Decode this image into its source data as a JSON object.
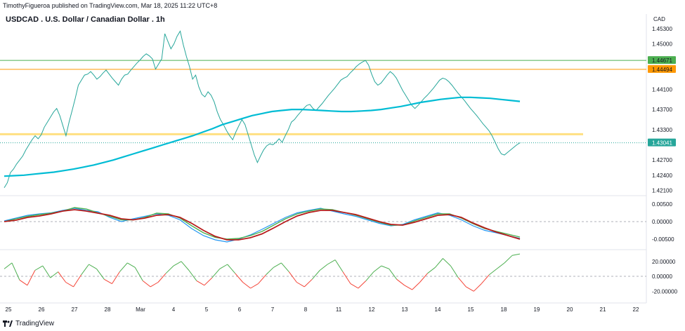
{
  "header": {
    "attribution": "TimothyFigueroa published on TradingView.com, Mar 18, 2025 11:22 UTC+8",
    "brand": "TradingView"
  },
  "chart_data": {
    "type": "line",
    "title": "USDCAD . U.S. Dollar / Canadian Dollar . 1h",
    "currency": "CAD",
    "x_labels": [
      "25",
      "26",
      "27",
      "28",
      "Mar",
      "4",
      "5",
      "6",
      "7",
      "8",
      "11",
      "12",
      "13",
      "14",
      "15",
      "18",
      "19",
      "20",
      "21",
      "22"
    ],
    "price_panel": {
      "y_ticks": [
        "1.45300",
        "1.45000",
        "1.44100",
        "1.43700",
        "1.43300",
        "1.42700",
        "1.42400",
        "1.42100"
      ],
      "ylim": [
        1.4205,
        1.4545
      ],
      "series": [
        {
          "name": "price",
          "color": "#26a69a",
          "values": [
            1.4215,
            1.4225,
            1.4245,
            1.4252,
            1.4262,
            1.427,
            1.4278,
            1.429,
            1.43,
            1.431,
            1.4318,
            1.4312,
            1.432,
            1.4335,
            1.4345,
            1.4355,
            1.4365,
            1.4372,
            1.4358,
            1.4338,
            1.4318,
            1.4345,
            1.4368,
            1.4392,
            1.4418,
            1.4428,
            1.4438,
            1.444,
            1.4445,
            1.4438,
            1.443,
            1.4435,
            1.4442,
            1.4448,
            1.444,
            1.4432,
            1.4425,
            1.4418,
            1.443,
            1.4438,
            1.444,
            1.4448,
            1.4455,
            1.4462,
            1.4468,
            1.4475,
            1.448,
            1.4476,
            1.447,
            1.445,
            1.446,
            1.447,
            1.452,
            1.4505,
            1.449,
            1.45,
            1.4515,
            1.4525,
            1.4498,
            1.4475,
            1.4455,
            1.443,
            1.4438,
            1.4415,
            1.44,
            1.4395,
            1.4405,
            1.4398,
            1.4385,
            1.4365,
            1.435,
            1.434,
            1.4328,
            1.4318,
            1.431,
            1.4325,
            1.4338,
            1.435,
            1.434,
            1.432,
            1.43,
            1.428,
            1.4265,
            1.4278,
            1.429,
            1.4298,
            1.4302,
            1.43,
            1.4305,
            1.4312,
            1.4305,
            1.4318,
            1.433,
            1.4345,
            1.435,
            1.4358,
            1.4365,
            1.4372,
            1.4378,
            1.438,
            1.4372,
            1.4368,
            1.4375,
            1.4382,
            1.439,
            1.4398,
            1.4405,
            1.4412,
            1.442,
            1.4428,
            1.4432,
            1.4435,
            1.4442,
            1.4448,
            1.4455,
            1.446,
            1.4464,
            1.4467,
            1.4458,
            1.444,
            1.4425,
            1.4418,
            1.4422,
            1.443,
            1.4438,
            1.4445,
            1.444,
            1.4432,
            1.442,
            1.4408,
            1.4398,
            1.4388,
            1.4378,
            1.4372,
            1.4378,
            1.4385,
            1.4392,
            1.4398,
            1.4405,
            1.4412,
            1.442,
            1.4428,
            1.4432,
            1.443,
            1.4425,
            1.4418,
            1.441,
            1.4402,
            1.4395,
            1.4388,
            1.438,
            1.4372,
            1.4365,
            1.4358,
            1.435,
            1.4342,
            1.4335,
            1.4328,
            1.4318,
            1.4305,
            1.4292,
            1.4282,
            1.428,
            1.4285,
            1.429,
            1.4295,
            1.43,
            1.4304
          ]
        },
        {
          "name": "moving-average",
          "color": "#00bcd4",
          "values": [
            1.4238,
            1.4239,
            1.424,
            1.4242,
            1.4244,
            1.4246,
            1.4249,
            1.4252,
            1.4256,
            1.426,
            1.4265,
            1.427,
            1.4276,
            1.4282,
            1.4288,
            1.4294,
            1.43,
            1.4306,
            1.4312,
            1.4318,
            1.4325,
            1.4332,
            1.434,
            1.4346,
            1.4352,
            1.4358,
            1.4362,
            1.4366,
            1.4368,
            1.437,
            1.437,
            1.4369,
            1.4368,
            1.4367,
            1.4366,
            1.4366,
            1.4367,
            1.4368,
            1.437,
            1.4373,
            1.4376,
            1.438,
            1.4384,
            1.4387,
            1.439,
            1.4392,
            1.4394,
            1.4394,
            1.4393,
            1.4392,
            1.439,
            1.4388,
            1.4386
          ]
        }
      ],
      "horizontal_levels": [
        {
          "value": 1.44671,
          "label": "1.44671",
          "color": "#4caf50"
        },
        {
          "value": 1.44494,
          "label": "1.44494",
          "color": "#ff9800"
        },
        {
          "value": 1.4321,
          "label": "",
          "color": "#ffe082"
        },
        {
          "value": 1.43041,
          "label": "1.43041",
          "color": "#26a69a"
        }
      ]
    },
    "indicator_panel_1": {
      "y_ticks": [
        "0.00500",
        "0.00000",
        "-0.00500"
      ],
      "ylim": [
        -0.0072,
        0.0068
      ],
      "series": [
        {
          "name": "fast",
          "color": "#2196f3",
          "values": [
            0.0002,
            0.001,
            0.0018,
            0.0022,
            0.0025,
            0.0032,
            0.0038,
            0.0032,
            0.0028,
            0.0012,
            0.0,
            0.0008,
            0.0015,
            0.0022,
            0.0018,
            0.0005,
            -0.002,
            -0.004,
            -0.0052,
            -0.0058,
            -0.005,
            -0.0038,
            -0.0022,
            -0.0005,
            0.0012,
            0.0025,
            0.0032,
            0.0038,
            0.003,
            0.0022,
            0.0015,
            0.0005,
            -0.0005,
            -0.0012,
            -0.0008,
            0.0005,
            0.0015,
            0.0025,
            0.0018,
            0.0005,
            -0.0012,
            -0.0025,
            -0.0032,
            -0.004,
            -0.0048
          ]
        },
        {
          "name": "slow",
          "color": "#4caf50",
          "values": [
            0.0,
            0.0008,
            0.0015,
            0.002,
            0.0024,
            0.003,
            0.004,
            0.0036,
            0.0025,
            0.0015,
            0.0005,
            0.0005,
            0.0012,
            0.0024,
            0.0022,
            0.001,
            -0.0012,
            -0.0032,
            -0.0045,
            -0.005,
            -0.0048,
            -0.004,
            -0.0028,
            -0.001,
            0.0008,
            0.0022,
            0.003,
            0.0036,
            0.0034,
            0.0026,
            0.0018,
            0.0008,
            -0.0002,
            -0.001,
            -0.001,
            0.0002,
            0.0012,
            0.0022,
            0.0022,
            0.001,
            -0.0006,
            -0.002,
            -0.0028,
            -0.0036,
            -0.0044
          ]
        },
        {
          "name": "signal",
          "color": "#b71c1c",
          "values": [
            0.0,
            0.0004,
            0.0012,
            0.0016,
            0.0022,
            0.003,
            0.0034,
            0.003,
            0.0024,
            0.0018,
            0.0008,
            0.0005,
            0.001,
            0.0018,
            0.002,
            0.0012,
            -0.0005,
            -0.0025,
            -0.0042,
            -0.0052,
            -0.0052,
            -0.0046,
            -0.0035,
            -0.0018,
            0.0,
            0.0016,
            0.0026,
            0.0032,
            0.0032,
            0.0026,
            0.002,
            0.001,
            0.0,
            -0.0008,
            -0.001,
            -0.0002,
            0.0008,
            0.0018,
            0.002,
            0.0012,
            -0.0004,
            -0.0018,
            -0.003,
            -0.004,
            -0.005
          ]
        }
      ]
    },
    "indicator_panel_2": {
      "y_ticks": [
        "20.00000",
        "0.00000",
        "-20.00000"
      ],
      "ylim": [
        -32,
        32
      ],
      "series": [
        {
          "name": "oscillator",
          "color": "#4caf50",
          "values": [
            10,
            18,
            -5,
            -12,
            8,
            14,
            -2,
            6,
            -8,
            -14,
            2,
            16,
            10,
            -4,
            -10,
            6,
            18,
            12,
            -6,
            -14,
            -8,
            4,
            14,
            20,
            8,
            -6,
            -12,
            -2,
            10,
            16,
            4,
            -8,
            -16,
            -10,
            2,
            12,
            18,
            6,
            -8,
            -14,
            -4,
            8,
            16,
            22,
            6,
            -10,
            -16,
            -6,
            6,
            14,
            10,
            -4,
            -12,
            -18,
            -8,
            4,
            12,
            24,
            14,
            -2,
            -14,
            -20,
            -10,
            2,
            10,
            18,
            28,
            30
          ]
        }
      ]
    }
  }
}
